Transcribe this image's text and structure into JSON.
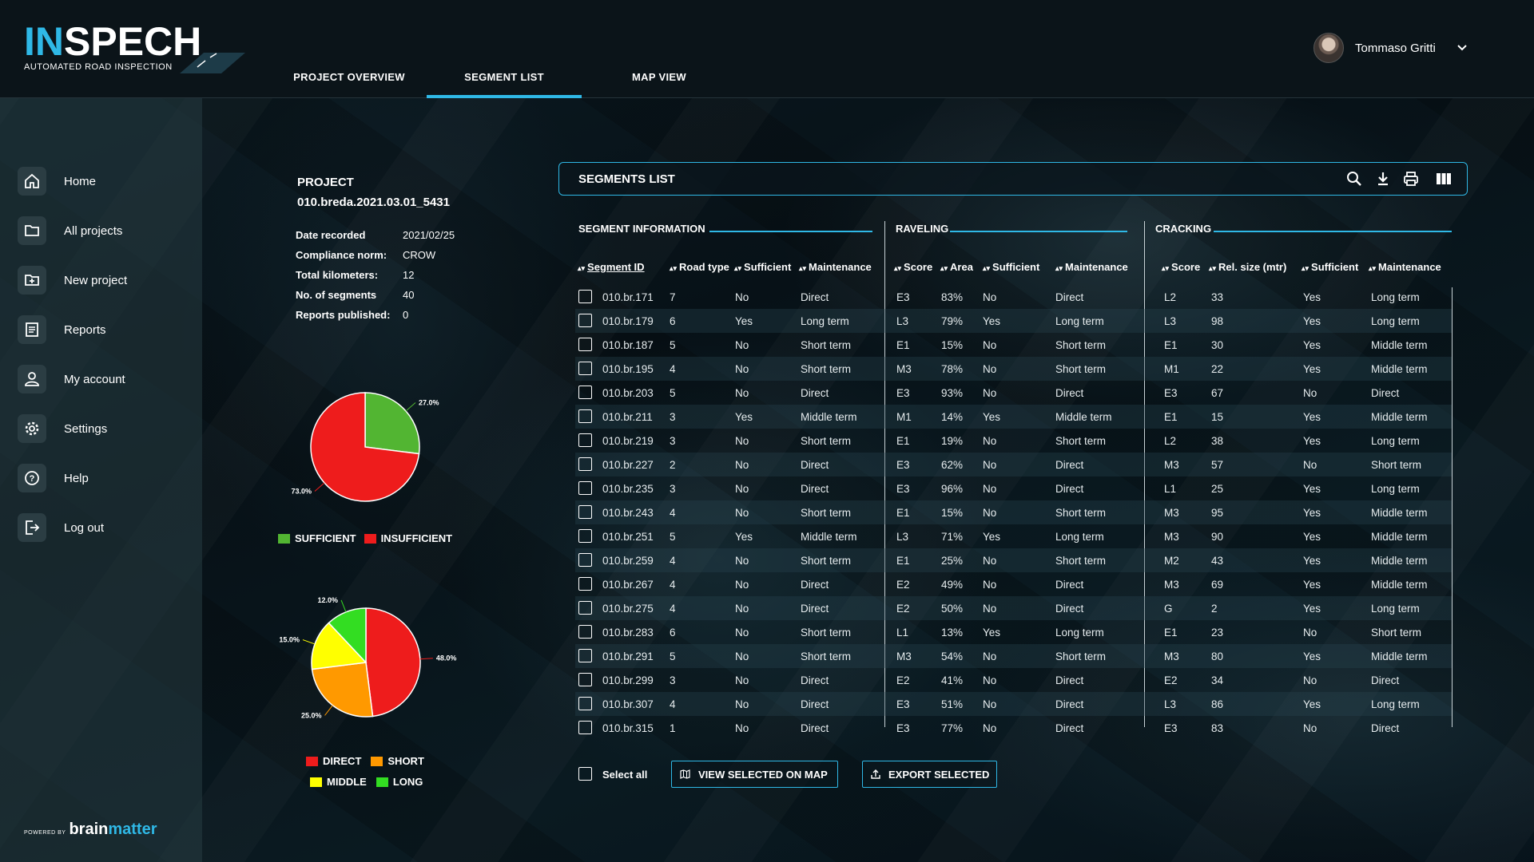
{
  "brand": {
    "logo_in": "IN",
    "logo_spech": "SPECH",
    "tagline": "AUTOMATED ROAD INSPECTION",
    "powered_small": "POWERED BY",
    "powered_brain": "brain",
    "powered_matter": "matter",
    "accent": "#2fb8e6"
  },
  "nav": {
    "tabs": [
      {
        "label": "PROJECT OVERVIEW"
      },
      {
        "label": "SEGMENT LIST"
      },
      {
        "label": "MAP VIEW"
      }
    ],
    "active": "SEGMENT LIST"
  },
  "user": {
    "name": "Tommaso Gritti"
  },
  "sidebar": {
    "items": [
      {
        "label": "Home",
        "icon": "home-icon"
      },
      {
        "label": "All projects",
        "icon": "folder-icon"
      },
      {
        "label": "New project",
        "icon": "folder-plus-icon"
      },
      {
        "label": "Reports",
        "icon": "document-icon"
      },
      {
        "label": "My account",
        "icon": "user-icon"
      },
      {
        "label": "Settings",
        "icon": "gear-icon"
      },
      {
        "label": "Help",
        "icon": "help-icon"
      },
      {
        "label": "Log out",
        "icon": "logout-icon"
      }
    ]
  },
  "project": {
    "heading": "PROJECT",
    "id": "010.breda.2021.03.01_5431",
    "info": [
      {
        "key": "Date recorded",
        "value": "2021/02/25"
      },
      {
        "key": "Compliance norm:",
        "value": "CROW"
      },
      {
        "key": "Total kilometers:",
        "value": "12"
      },
      {
        "key": "No. of segments",
        "value": "40"
      },
      {
        "key": "Reports published:",
        "value": "0"
      }
    ]
  },
  "chart_data": [
    {
      "type": "pie",
      "labels": [
        "SUFFICIENT",
        "INSUFFICIENT"
      ],
      "values": [
        27.0,
        73.0
      ],
      "value_labels": [
        "27.0%",
        "73.0%"
      ],
      "colors": [
        "#52b532",
        "#ee1c1c"
      ],
      "legend": "bottom"
    },
    {
      "type": "pie",
      "labels": [
        "DIRECT",
        "SHORT",
        "MIDDLE",
        "LONG"
      ],
      "values": [
        48.0,
        25.0,
        15.0,
        12.0
      ],
      "value_labels": [
        "48.0%",
        "25.0%",
        "15.0%",
        "12.0%"
      ],
      "colors": [
        "#ee1c1c",
        "#ff9900",
        "#ffff00",
        "#33dd22"
      ],
      "legend": "bottom"
    }
  ],
  "segments": {
    "title": "SEGMENTS LIST",
    "tools": [
      "search-icon",
      "download-icon",
      "print-icon",
      "columns-icon"
    ],
    "groups": [
      "SEGMENT INFORMATION",
      "RAVELING",
      "CRACKING"
    ],
    "columns": [
      "Segment ID",
      "Road type",
      "Sufficient",
      "Maintenance",
      "Score",
      "Area",
      "Sufficient",
      "Maintenance",
      "Score",
      "Rel. size (mtr)",
      "Sufficient",
      "Maintenance"
    ],
    "rows": [
      [
        "010.br.171",
        "7",
        "No",
        "Direct",
        "E3",
        "83%",
        "No",
        "Direct",
        "L2",
        "33",
        "Yes",
        "Long term"
      ],
      [
        "010.br.179",
        "6",
        "Yes",
        "Long term",
        "L3",
        "79%",
        "Yes",
        "Long term",
        "L3",
        "98",
        "Yes",
        "Long term"
      ],
      [
        "010.br.187",
        "5",
        "No",
        "Short term",
        "E1",
        "15%",
        "No",
        "Short term",
        "E1",
        "30",
        "Yes",
        "Middle term"
      ],
      [
        "010.br.195",
        "4",
        "No",
        "Short term",
        "M3",
        "78%",
        "No",
        "Short term",
        "M1",
        "22",
        "Yes",
        "Middle term"
      ],
      [
        "010.br.203",
        "5",
        "No",
        "Direct",
        "E3",
        "93%",
        "No",
        "Direct",
        "E3",
        "67",
        "No",
        "Direct"
      ],
      [
        "010.br.211",
        "3",
        "Yes",
        "Middle term",
        "M1",
        "14%",
        "Yes",
        "Middle term",
        "E1",
        "15",
        "Yes",
        "Middle term"
      ],
      [
        "010.br.219",
        "3",
        "No",
        "Short term",
        "E1",
        "19%",
        "No",
        "Short term",
        "L2",
        "38",
        "Yes",
        "Long term"
      ],
      [
        "010.br.227",
        "2",
        "No",
        "Direct",
        "E3",
        "62%",
        "No",
        "Direct",
        "M3",
        "57",
        "No",
        "Short term"
      ],
      [
        "010.br.235",
        "3",
        "No",
        "Direct",
        "E3",
        "96%",
        "No",
        "Direct",
        "L1",
        "25",
        "Yes",
        "Long term"
      ],
      [
        "010.br.243",
        "4",
        "No",
        "Short term",
        "E1",
        "15%",
        "No",
        "Short term",
        "M3",
        "95",
        "Yes",
        "Middle term"
      ],
      [
        "010.br.251",
        "5",
        "Yes",
        "Middle term",
        "L3",
        "71%",
        "Yes",
        "Long term",
        "M3",
        "90",
        "Yes",
        "Middle term"
      ],
      [
        "010.br.259",
        "4",
        "No",
        "Short term",
        "E1",
        "25%",
        "No",
        "Short term",
        "M2",
        "43",
        "Yes",
        "Middle term"
      ],
      [
        "010.br.267",
        "4",
        "No",
        "Direct",
        "E2",
        "49%",
        "No",
        "Direct",
        "M3",
        "69",
        "Yes",
        "Middle term"
      ],
      [
        "010.br.275",
        "4",
        "No",
        "Direct",
        "E2",
        "50%",
        "No",
        "Direct",
        "G",
        "2",
        "Yes",
        "Long term"
      ],
      [
        "010.br.283",
        "6",
        "No",
        "Short term",
        "L1",
        "13%",
        "Yes",
        "Long term",
        "E1",
        "23",
        "No",
        "Short term"
      ],
      [
        "010.br.291",
        "5",
        "No",
        "Short term",
        "M3",
        "54%",
        "No",
        "Short term",
        "M3",
        "80",
        "Yes",
        "Middle term"
      ],
      [
        "010.br.299",
        "3",
        "No",
        "Direct",
        "E2",
        "41%",
        "No",
        "Direct",
        "E2",
        "34",
        "No",
        "Direct"
      ],
      [
        "010.br.307",
        "4",
        "No",
        "Direct",
        "E3",
        "51%",
        "No",
        "Direct",
        "L3",
        "86",
        "Yes",
        "Long term"
      ],
      [
        "010.br.315",
        "1",
        "No",
        "Direct",
        "E3",
        "77%",
        "No",
        "Direct",
        "E3",
        "83",
        "No",
        "Direct"
      ]
    ],
    "select_all": "Select all",
    "view_button": "VIEW SELECTED ON MAP",
    "export_button": "EXPORT SELECTED"
  }
}
